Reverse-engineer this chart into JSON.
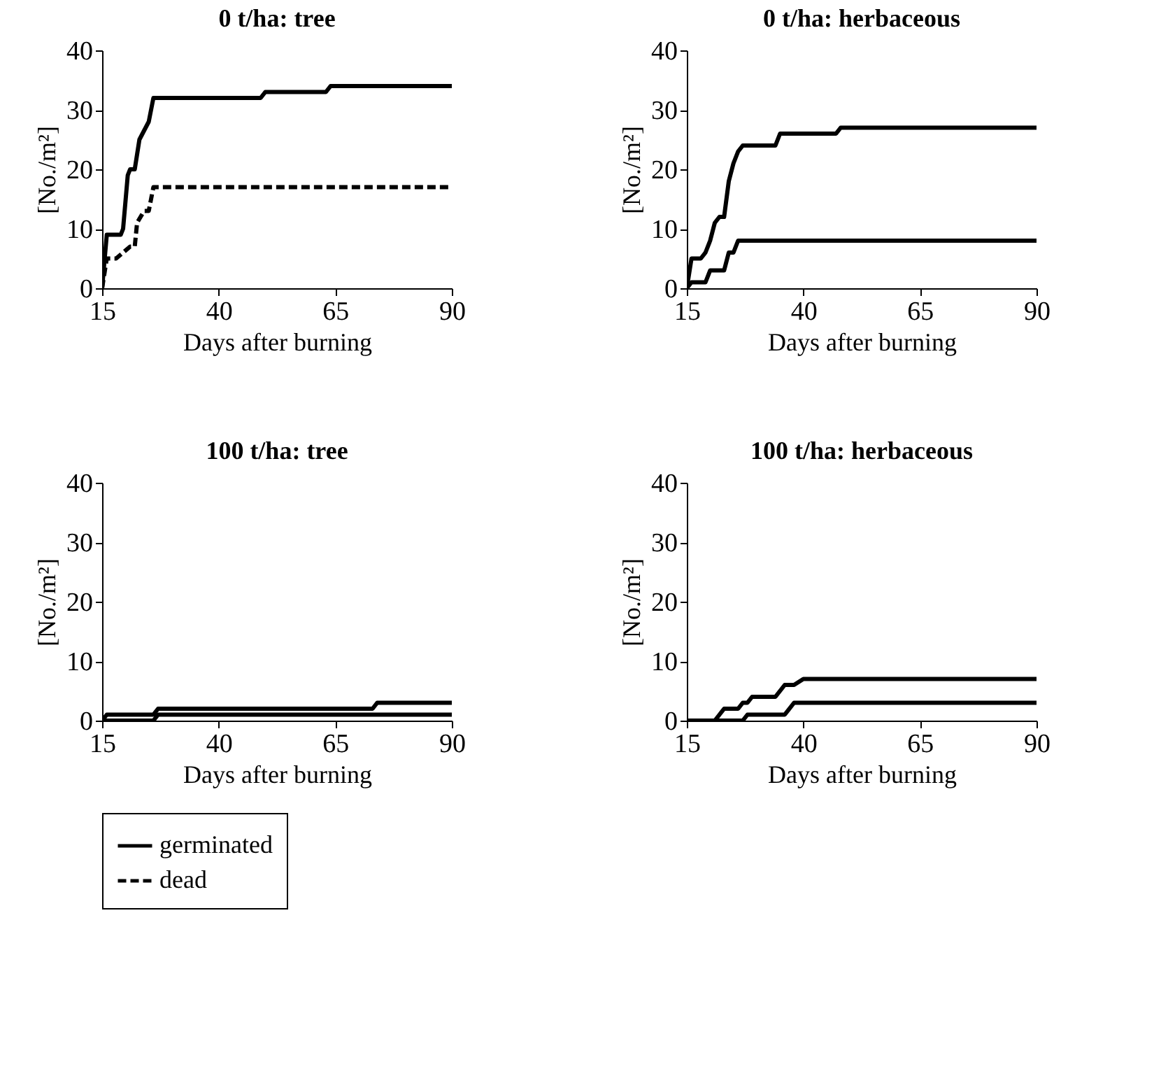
{
  "chart_data": [
    {
      "type": "line",
      "title": "0 t/ha: tree",
      "xlabel": "Days after burning",
      "ylabel": "[No./m²]",
      "xlim": [
        15,
        90
      ],
      "xticks": [
        15,
        40,
        65,
        90
      ],
      "ylim": [
        0,
        40
      ],
      "yticks": [
        0,
        10,
        20,
        30,
        40
      ],
      "legend": "bottom",
      "series": [
        {
          "name": "germinated",
          "color": "#000000",
          "line_style": "solid",
          "x": [
            15,
            16,
            19,
            19.5,
            20.5,
            21,
            22,
            23,
            25,
            26,
            49,
            50,
            63,
            64,
            90
          ],
          "values": [
            0,
            9,
            9,
            10,
            19,
            20,
            20,
            25,
            28,
            32,
            32,
            33,
            33,
            34,
            34
          ]
        },
        {
          "name": "dead",
          "color": "#000000",
          "line_style": "dashed",
          "x": [
            15,
            16,
            18,
            21,
            22,
            22.5,
            24,
            25,
            26,
            90
          ],
          "values": [
            0,
            5,
            5,
            7,
            7,
            11,
            13,
            13,
            17,
            17
          ]
        }
      ]
    },
    {
      "type": "line",
      "title": "0 t/ha: herbaceous",
      "xlabel": "Days after burning",
      "ylabel": "[No./m²]",
      "xlim": [
        15,
        90
      ],
      "xticks": [
        15,
        40,
        65,
        90
      ],
      "ylim": [
        0,
        40
      ],
      "yticks": [
        0,
        10,
        20,
        30,
        40
      ],
      "series": [
        {
          "color": "#000000",
          "line_style": "solid",
          "x": [
            15,
            16,
            18,
            19,
            20,
            21,
            22,
            23,
            24,
            25,
            26,
            27,
            34,
            35,
            47,
            48,
            90
          ],
          "values": [
            0,
            5,
            5,
            6,
            8,
            11,
            12,
            12,
            18,
            21,
            23,
            24,
            24,
            26,
            26,
            27,
            27
          ]
        },
        {
          "color": "#000000",
          "line_style": "solid",
          "x": [
            15,
            16,
            19,
            20,
            23,
            24,
            25,
            26,
            90
          ],
          "values": [
            0,
            1,
            1,
            3,
            3,
            6,
            6,
            8,
            8
          ]
        }
      ]
    },
    {
      "type": "line",
      "title": "100 t/ha: tree",
      "xlabel": "Days after burning",
      "ylabel": "[No./m²]",
      "xlim": [
        15,
        90
      ],
      "xticks": [
        15,
        40,
        65,
        90
      ],
      "ylim": [
        0,
        40
      ],
      "yticks": [
        0,
        10,
        20,
        30,
        40
      ],
      "series": [
        {
          "color": "#000000",
          "line_style": "solid",
          "x": [
            15,
            16,
            26,
            27,
            73,
            74,
            90
          ],
          "values": [
            0,
            1,
            1,
            2,
            2,
            3,
            3
          ]
        },
        {
          "color": "#000000",
          "line_style": "solid",
          "x": [
            15,
            26,
            27,
            90
          ],
          "values": [
            0,
            0,
            1,
            1
          ]
        }
      ]
    },
    {
      "type": "line",
      "title": "100 t/ha: herbaceous",
      "xlabel": "Days after burning",
      "ylabel": "[No./m²]",
      "xlim": [
        15,
        90
      ],
      "xticks": [
        15,
        40,
        65,
        90
      ],
      "ylim": [
        0,
        40
      ],
      "yticks": [
        0,
        10,
        20,
        30,
        40
      ],
      "series": [
        {
          "color": "#000000",
          "line_style": "solid",
          "x": [
            15,
            21,
            22,
            23,
            26,
            27,
            28,
            29,
            34,
            36,
            38,
            40,
            90
          ],
          "values": [
            0,
            0,
            1,
            2,
            2,
            3,
            3,
            4,
            4,
            6,
            6,
            7,
            7
          ]
        },
        {
          "color": "#000000",
          "line_style": "solid",
          "x": [
            15,
            27,
            28,
            36,
            38,
            90
          ],
          "values": [
            0,
            0,
            1,
            1,
            3,
            3
          ]
        }
      ]
    }
  ]
}
